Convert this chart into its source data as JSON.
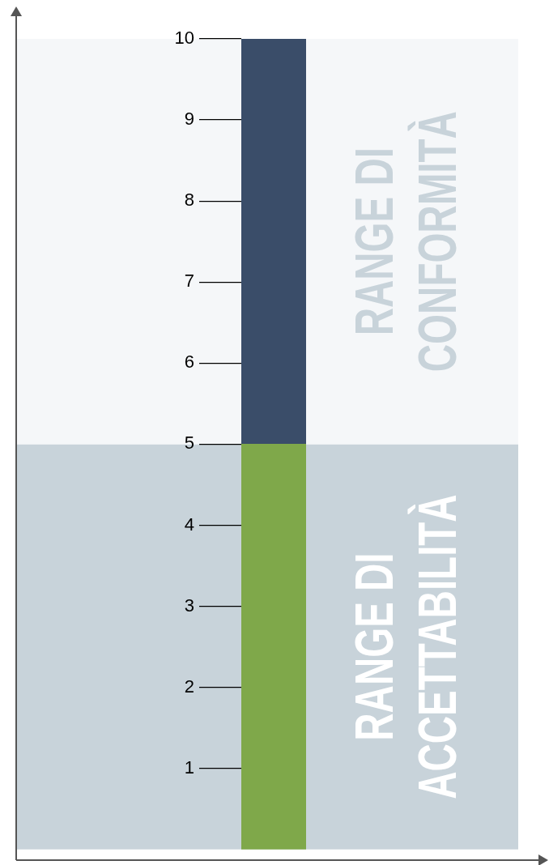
{
  "chart_data": {
    "type": "bar",
    "stacked": true,
    "categories": [
      null
    ],
    "series": [
      {
        "color": "#7fa84a",
        "values": [
          5
        ]
      },
      {
        "color": "#3a4d69",
        "values": [
          5
        ]
      }
    ],
    "ylim": [
      0,
      10
    ],
    "yticks": [
      1,
      2,
      3,
      4,
      5,
      6,
      7,
      8,
      9,
      10
    ],
    "tick_labels": "y",
    "bands": [
      {
        "axis": "y",
        "from": 0,
        "to": 5,
        "label": "RANGE DI\nACCETTABILITÀ",
        "color": "#c8d3da"
      },
      {
        "axis": "y",
        "from": 5,
        "to": 10,
        "label": "RANGE DI\nCONFORMITÀ",
        "color": "#f5f7f9"
      }
    ]
  }
}
